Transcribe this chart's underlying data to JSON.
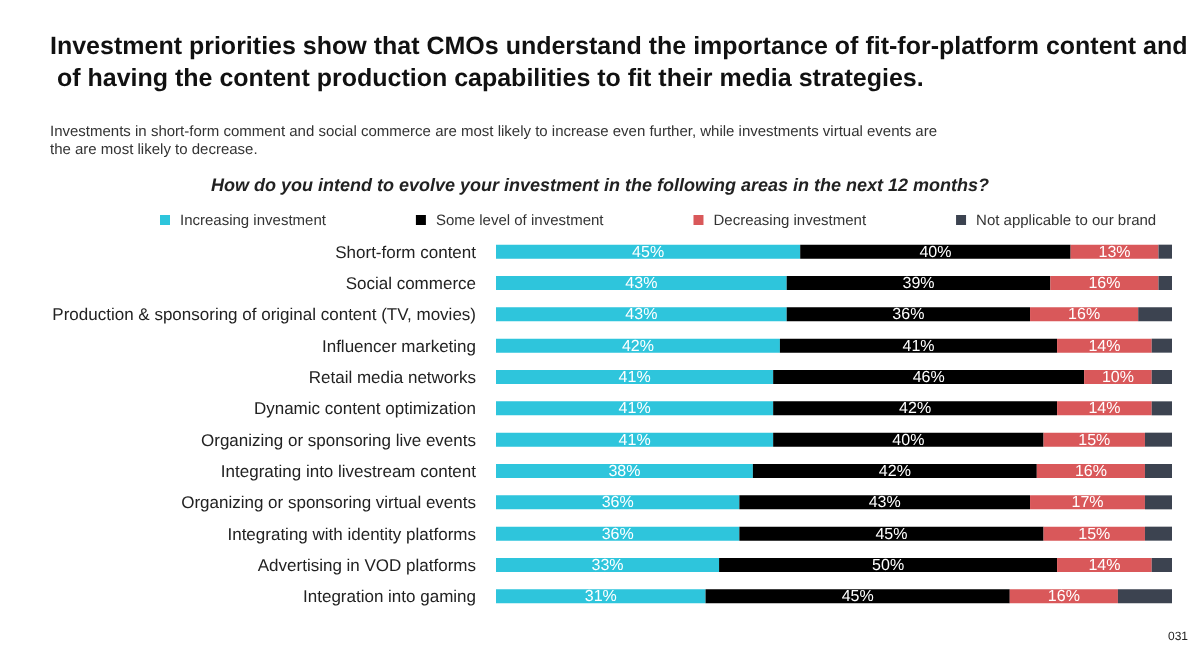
{
  "chart_data": {
    "type": "bar",
    "orientation": "horizontal",
    "stacked": true,
    "title": "Investment priorities show that CMOs understand the importance of fit-for-platform content and of having the content production capabilities to fit their media strategies.",
    "subtitle": "Investments in short-form comment and social commerce are most likely to increase even further, while investments virtual events are the are most likely to decrease.",
    "annotations": [
      "How do you intend to evolve your investment in the following areas in the next 12 months?",
      "031"
    ],
    "categories": [
      "Short-form content",
      "Social commerce",
      "Production & sponsoring of original content (TV, movies)",
      "Influencer marketing",
      "Retail media networks",
      "Dynamic content optimization",
      "Organizing or sponsoring live events",
      "Integrating into livestream content",
      "Organizing or sponsoring virtual events",
      "Integrating with identity platforms",
      "Advertising in VOD platforms",
      "Integration into gaming"
    ],
    "series": [
      {
        "name": "Increasing investment",
        "color": "#2ec5dc",
        "values": [
          45,
          43,
          43,
          42,
          41,
          41,
          41,
          38,
          36,
          36,
          33,
          31
        ],
        "value_labels": [
          "45%",
          "43%",
          "43%",
          "42%",
          "41%",
          "41%",
          "41%",
          "38%",
          "36%",
          "36%",
          "33%",
          "31%"
        ]
      },
      {
        "name": "Some level of investment",
        "color": "#000000",
        "values": [
          40,
          39,
          36,
          41,
          46,
          42,
          40,
          42,
          43,
          45,
          50,
          45
        ],
        "value_labels": [
          "40%",
          "39%",
          "36%",
          "41%",
          "46%",
          "42%",
          "40%",
          "42%",
          "43%",
          "45%",
          "50%",
          "45%"
        ]
      },
      {
        "name": "Decreasing investment",
        "color": "#d9585a",
        "values": [
          13,
          16,
          16,
          14,
          10,
          14,
          15,
          16,
          17,
          15,
          14,
          16
        ],
        "value_labels": [
          "13%",
          "16%",
          "16%",
          "14%",
          "10%",
          "14%",
          "15%",
          "16%",
          "17%",
          "15%",
          "14%",
          "16%"
        ]
      },
      {
        "name": "Not applicable to our brand",
        "color": "#3c4350",
        "values": [
          2,
          2,
          5,
          3,
          3,
          3,
          4,
          4,
          4,
          4,
          3,
          8
        ]
      }
    ],
    "legend": "top left"
  }
}
